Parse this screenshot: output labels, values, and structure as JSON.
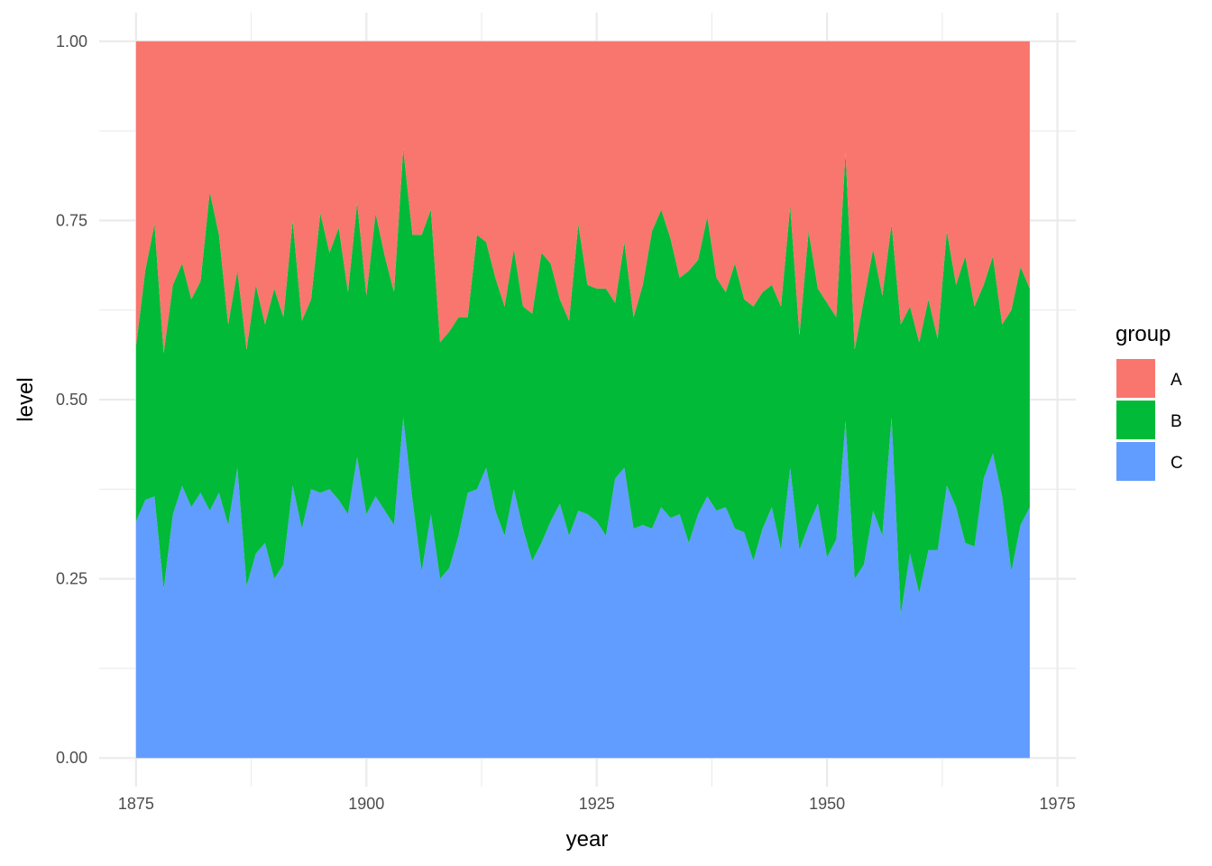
{
  "chart_data": {
    "type": "area",
    "stacked": "fill",
    "xlabel": "year",
    "ylabel": "level",
    "xlim": [
      1871,
      1977
    ],
    "ylim": [
      -0.04,
      1.04
    ],
    "x_ticks": [
      1875,
      1900,
      1925,
      1950,
      1975
    ],
    "x_tick_labels": [
      "1875",
      "1900",
      "1925",
      "1950",
      "1975"
    ],
    "y_ticks": [
      0,
      0.25,
      0.5,
      0.75,
      1
    ],
    "y_tick_labels": [
      "0.00",
      "0.25",
      "0.50",
      "0.75",
      "1.00"
    ],
    "grid": true,
    "legend": {
      "title": "group",
      "position": "right",
      "entries": [
        "A",
        "B",
        "C"
      ]
    },
    "colors": {
      "A": "#F8766D",
      "B": "#00BA38",
      "C": "#619CFF"
    },
    "x": [
      1875,
      1876,
      1877,
      1878,
      1879,
      1880,
      1881,
      1882,
      1883,
      1884,
      1885,
      1886,
      1887,
      1888,
      1889,
      1890,
      1891,
      1892,
      1893,
      1894,
      1895,
      1896,
      1897,
      1898,
      1899,
      1900,
      1901,
      1902,
      1903,
      1904,
      1905,
      1906,
      1907,
      1908,
      1909,
      1910,
      1911,
      1912,
      1913,
      1914,
      1915,
      1916,
      1917,
      1918,
      1919,
      1920,
      1921,
      1922,
      1923,
      1924,
      1925,
      1926,
      1927,
      1928,
      1929,
      1930,
      1931,
      1932,
      1933,
      1934,
      1935,
      1936,
      1937,
      1938,
      1939,
      1940,
      1941,
      1942,
      1943,
      1944,
      1945,
      1946,
      1947,
      1948,
      1949,
      1950,
      1951,
      1952,
      1953,
      1954,
      1955,
      1956,
      1957,
      1958,
      1959,
      1960,
      1961,
      1962,
      1963,
      1964,
      1965,
      1966,
      1967,
      1968,
      1969,
      1970,
      1971,
      1972
    ],
    "series": [
      {
        "name": "C",
        "values": [
          0.33,
          0.36,
          0.365,
          0.235,
          0.34,
          0.38,
          0.35,
          0.37,
          0.345,
          0.37,
          0.325,
          0.405,
          0.24,
          0.285,
          0.3,
          0.25,
          0.27,
          0.38,
          0.32,
          0.375,
          0.37,
          0.375,
          0.36,
          0.34,
          0.42,
          0.34,
          0.365,
          0.345,
          0.325,
          0.475,
          0.36,
          0.26,
          0.34,
          0.25,
          0.265,
          0.31,
          0.37,
          0.375,
          0.405,
          0.345,
          0.31,
          0.375,
          0.32,
          0.275,
          0.3,
          0.33,
          0.355,
          0.31,
          0.345,
          0.34,
          0.33,
          0.31,
          0.39,
          0.405,
          0.32,
          0.325,
          0.32,
          0.35,
          0.335,
          0.34,
          0.3,
          0.34,
          0.365,
          0.345,
          0.35,
          0.32,
          0.315,
          0.275,
          0.32,
          0.35,
          0.29,
          0.405,
          0.29,
          0.325,
          0.355,
          0.28,
          0.305,
          0.47,
          0.25,
          0.27,
          0.345,
          0.31,
          0.475,
          0.2,
          0.285,
          0.23,
          0.29,
          0.29,
          0.38,
          0.35,
          0.3,
          0.295,
          0.39,
          0.425,
          0.365,
          0.26,
          0.325,
          0.35
        ]
      },
      {
        "name": "B",
        "values": [
          0.245,
          0.32,
          0.38,
          0.33,
          0.32,
          0.31,
          0.29,
          0.295,
          0.445,
          0.36,
          0.28,
          0.275,
          0.33,
          0.375,
          0.305,
          0.405,
          0.345,
          0.37,
          0.29,
          0.265,
          0.39,
          0.33,
          0.38,
          0.31,
          0.355,
          0.305,
          0.395,
          0.355,
          0.325,
          0.375,
          0.37,
          0.47,
          0.425,
          0.33,
          0.33,
          0.305,
          0.245,
          0.355,
          0.315,
          0.325,
          0.32,
          0.335,
          0.31,
          0.345,
          0.405,
          0.36,
          0.285,
          0.3,
          0.4,
          0.32,
          0.325,
          0.345,
          0.245,
          0.315,
          0.295,
          0.335,
          0.415,
          0.415,
          0.39,
          0.33,
          0.38,
          0.355,
          0.39,
          0.325,
          0.3,
          0.37,
          0.325,
          0.355,
          0.33,
          0.31,
          0.34,
          0.365,
          0.3,
          0.41,
          0.3,
          0.355,
          0.31,
          0.375,
          0.32,
          0.37,
          0.365,
          0.335,
          0.27,
          0.405,
          0.345,
          0.35,
          0.35,
          0.295,
          0.355,
          0.31,
          0.4,
          0.335,
          0.27,
          0.275,
          0.24,
          0.365,
          0.36,
          0.305
        ]
      },
      {
        "name": "A",
        "values": [
          0.425,
          0.32,
          0.255,
          0.435,
          0.34,
          0.31,
          0.36,
          0.335,
          0.21,
          0.27,
          0.395,
          0.32,
          0.43,
          0.34,
          0.395,
          0.345,
          0.385,
          0.25,
          0.39,
          0.36,
          0.24,
          0.295,
          0.26,
          0.35,
          0.225,
          0.355,
          0.24,
          0.3,
          0.35,
          0.15,
          0.27,
          0.27,
          0.235,
          0.42,
          0.405,
          0.385,
          0.385,
          0.27,
          0.28,
          0.33,
          0.37,
          0.29,
          0.37,
          0.38,
          0.295,
          0.31,
          0.36,
          0.39,
          0.255,
          0.34,
          0.345,
          0.345,
          0.365,
          0.28,
          0.385,
          0.34,
          0.265,
          0.235,
          0.275,
          0.33,
          0.32,
          0.305,
          0.245,
          0.33,
          0.35,
          0.31,
          0.36,
          0.37,
          0.35,
          0.34,
          0.37,
          0.23,
          0.41,
          0.265,
          0.345,
          0.365,
          0.385,
          0.155,
          0.43,
          0.36,
          0.29,
          0.355,
          0.255,
          0.395,
          0.37,
          0.42,
          0.36,
          0.415,
          0.265,
          0.34,
          0.3,
          0.37,
          0.34,
          0.3,
          0.395,
          0.375,
          0.315,
          0.345
        ]
      }
    ]
  }
}
